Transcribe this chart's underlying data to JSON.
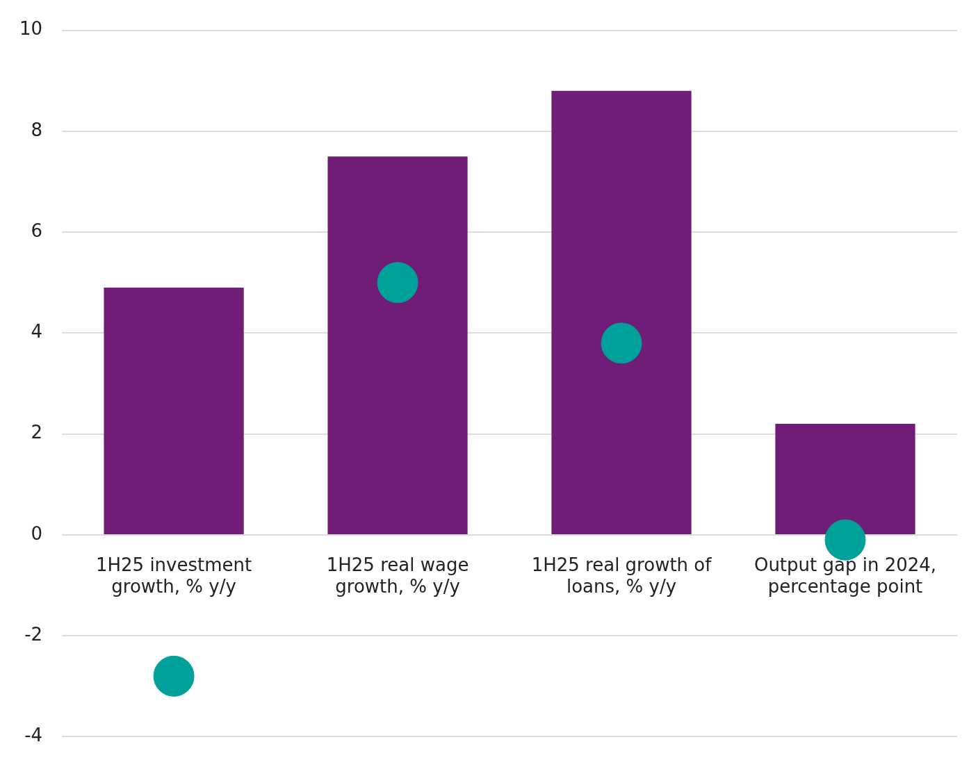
{
  "chart_data": {
    "type": "bar",
    "categories": [
      "1H25 investment growth, % y/y",
      "1H25 real wage growth, % y/y",
      "1H25 real growth of loans, % y/y",
      "Output gap in 2024, percentage point"
    ],
    "series": [
      {
        "color": "#6f1d77",
        "values": [
          4.9,
          7.5,
          8.8,
          2.2
        ]
      },
      {
        "type": "scatter",
        "color": "#00a19a",
        "x": [
          "1H25 investment growth, % y/y",
          "1H25 real wage growth, % y/y",
          "1H25 real growth of loans, % y/y",
          "Output gap in 2024, percentage point"
        ],
        "values": [
          -2.8,
          5.0,
          3.8,
          -0.1
        ]
      }
    ],
    "ylim": [
      -4,
      10
    ],
    "yticks": [
      -4,
      -2,
      0,
      2,
      4,
      6,
      8,
      10
    ],
    "grid": "y",
    "legend": false,
    "marker": "circle"
  }
}
